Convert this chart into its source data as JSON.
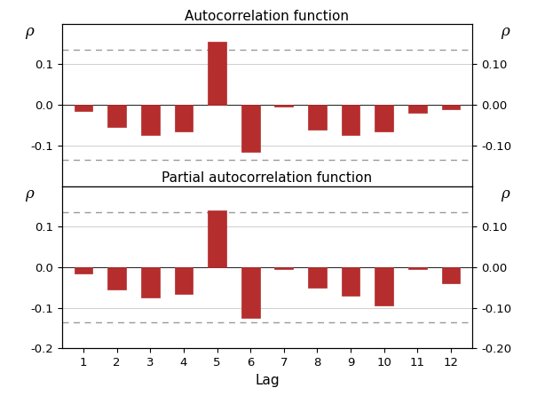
{
  "acf_values": [
    -0.015,
    -0.055,
    -0.075,
    -0.065,
    0.155,
    -0.115,
    -0.005,
    -0.06,
    -0.075,
    -0.065,
    -0.02,
    -0.01
  ],
  "pacf_values": [
    -0.015,
    -0.055,
    -0.075,
    -0.065,
    0.14,
    -0.125,
    -0.005,
    -0.05,
    -0.07,
    -0.095,
    -0.005,
    -0.04
  ],
  "lags": [
    1,
    2,
    3,
    4,
    5,
    6,
    7,
    8,
    9,
    10,
    11,
    12
  ],
  "ci_upper": 0.135,
  "ci_lower": -0.135,
  "bar_color": "#b52d2d",
  "ci_color": "#999999",
  "title_acf": "Autocorrelation function",
  "title_pacf": "Partial autocorrelation function",
  "xlabel": "Lag",
  "rho_label": "ρ",
  "ylim_acf": [
    -0.2,
    0.2
  ],
  "ylim_pacf": [
    -0.2,
    0.2
  ],
  "yticks_acf": [
    -0.1,
    0.0,
    0.1
  ],
  "yticks_pacf": [
    -0.2,
    -0.1,
    0.0,
    0.1
  ],
  "background_color": "#ffffff",
  "grid_color": "#bbbbbb"
}
